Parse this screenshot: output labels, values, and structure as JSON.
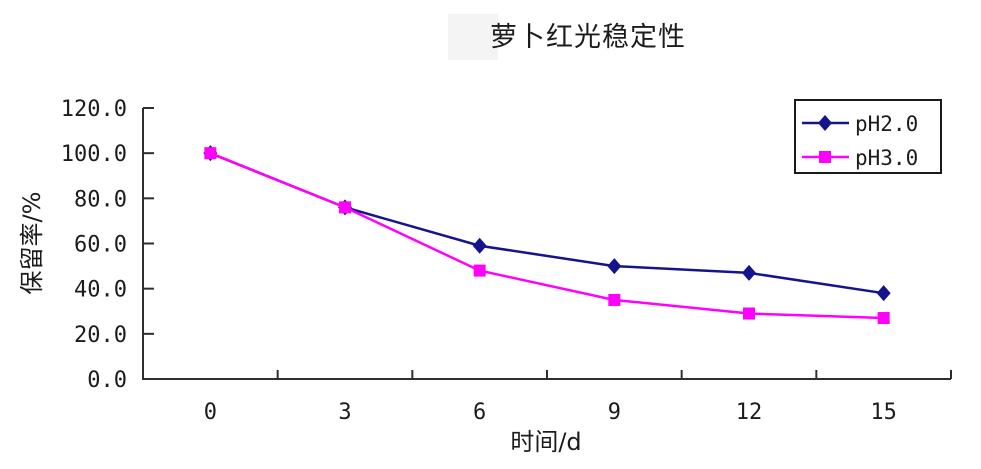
{
  "chart_data": {
    "type": "line",
    "title": "萝卜红光稳定性",
    "xlabel": "时间/d",
    "ylabel": "保留率/%",
    "categories": [
      "0",
      "3",
      "6",
      "9",
      "12",
      "15"
    ],
    "ylim": [
      0,
      120
    ],
    "ytick_interval": 20,
    "ytick_labels": [
      "0.0",
      "20.0",
      "40.0",
      "60.0",
      "80.0",
      "100.0",
      "120.0"
    ],
    "grid": false,
    "legend_position": "top-right",
    "series": [
      {
        "name": "pH2.0",
        "marker": "diamond",
        "color": "#14148C",
        "values": [
          100,
          76,
          59,
          50,
          47,
          38
        ]
      },
      {
        "name": "pH3.0",
        "marker": "square",
        "color": "#FF00FF",
        "values": [
          100,
          76,
          48,
          35,
          29,
          27
        ]
      }
    ]
  },
  "colors": {
    "background": "#FFFFFF",
    "axis": "#2E2E2E",
    "text": "#1C1C1C",
    "legend_border": "#1A1A1A",
    "legend_fill": "#FFFFFF"
  }
}
